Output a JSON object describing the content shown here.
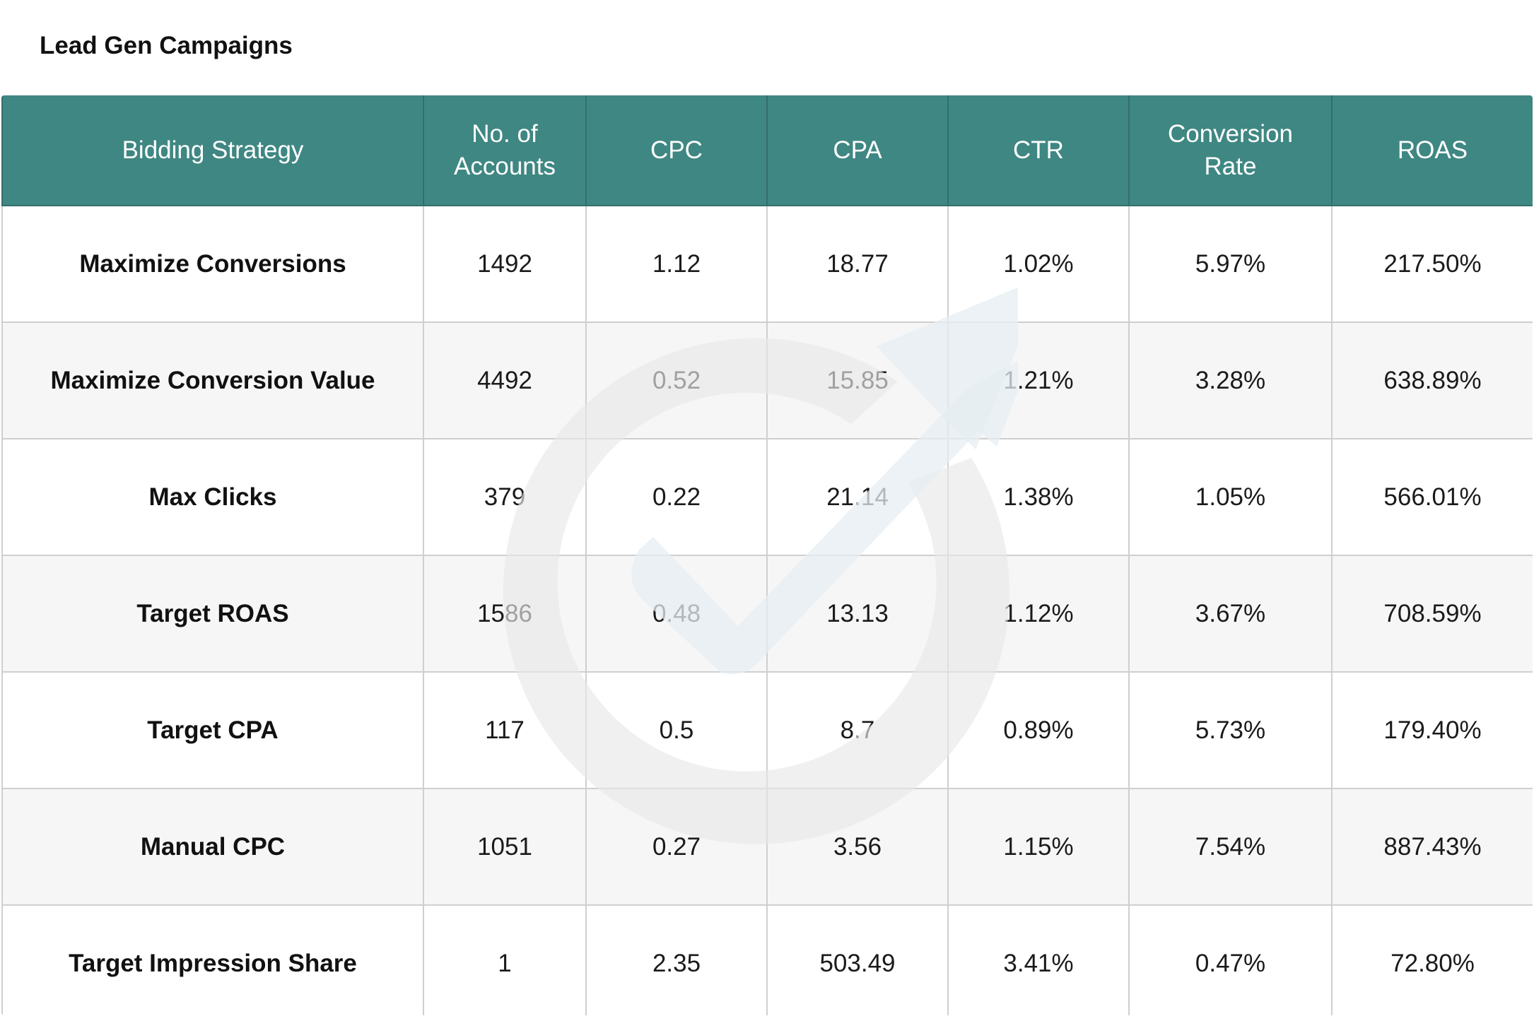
{
  "title": "Lead Gen Campaigns",
  "table": {
    "headers": [
      {
        "key": "strategy",
        "label": "Bidding Strategy"
      },
      {
        "key": "accounts",
        "label": "No. of Accounts"
      },
      {
        "key": "cpc",
        "label": "CPC"
      },
      {
        "key": "cpa",
        "label": "CPA"
      },
      {
        "key": "ctr",
        "label": "CTR"
      },
      {
        "key": "conversion_rate",
        "label": "Conversion Rate"
      },
      {
        "key": "roas",
        "label": "ROAS"
      }
    ],
    "rows": [
      {
        "strategy": "Maximize Conversions",
        "accounts": "1492",
        "cpc": "1.12",
        "cpa": "18.77",
        "ctr": "1.02%",
        "conversion_rate": "5.97%",
        "roas": "217.50%"
      },
      {
        "strategy": "Maximize Conversion Value",
        "accounts": "4492",
        "cpc": "0.52",
        "cpa": "15.85",
        "ctr": "1.21%",
        "conversion_rate": "3.28%",
        "roas": "638.89%"
      },
      {
        "strategy": "Max Clicks",
        "accounts": "379",
        "cpc": "0.22",
        "cpa": "21.14",
        "ctr": "1.38%",
        "conversion_rate": "1.05%",
        "roas": "566.01%"
      },
      {
        "strategy": "Target ROAS",
        "accounts": "1586",
        "cpc": "0.48",
        "cpa": "13.13",
        "ctr": "1.12%",
        "conversion_rate": "3.67%",
        "roas": "708.59%"
      },
      {
        "strategy": "Target CPA",
        "accounts": "117",
        "cpc": "0.5",
        "cpa": "8.7",
        "ctr": "0.89%",
        "conversion_rate": "5.73%",
        "roas": "179.40%"
      },
      {
        "strategy": "Manual CPC",
        "accounts": "1051",
        "cpc": "0.27",
        "cpa": "3.56",
        "ctr": "1.15%",
        "conversion_rate": "7.54%",
        "roas": "887.43%"
      },
      {
        "strategy": "Target Impression Share",
        "accounts": "1",
        "cpc": "2.35",
        "cpa": "503.49",
        "ctr": "3.41%",
        "conversion_rate": "0.47%",
        "roas": "72.80%"
      }
    ]
  },
  "colors": {
    "header_bg": "#3f8783",
    "header_text": "#ffffff",
    "row_alt_bg": "#f6f6f6",
    "border": "#cfcfcf"
  },
  "watermark_icon": "target-arrow-logo-icon"
}
